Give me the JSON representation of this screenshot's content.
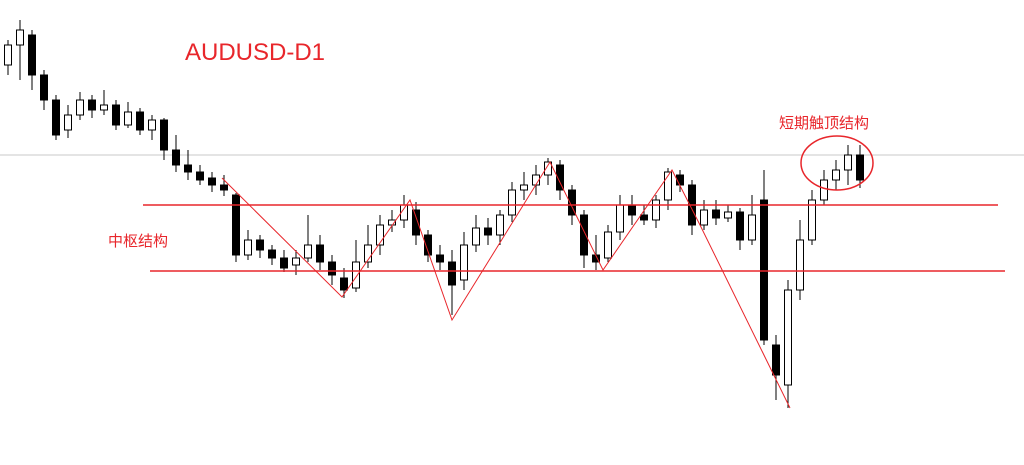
{
  "chart_data": {
    "type": "candlestick",
    "title": "AUDUSD-D1",
    "annotations": [
      "中枢结构",
      "短期触顶结构"
    ],
    "ylim": [
      0,
      465
    ],
    "open": [
      400,
      420,
      430,
      390,
      365,
      335,
      350,
      365,
      355,
      360,
      340,
      353,
      335,
      345,
      315,
      300,
      293,
      287,
      280,
      270,
      210,
      225,
      215,
      207,
      200,
      207,
      220,
      203,
      187,
      177,
      203,
      220,
      240,
      245,
      255,
      230,
      210,
      203,
      185,
      220,
      237,
      230,
      250,
      275,
      280,
      290,
      300,
      275,
      250,
      210,
      207,
      233,
      260,
      250,
      245,
      265,
      290,
      280,
      240,
      255,
      247,
      253,
      225,
      265,
      120,
      80,
      175,
      225,
      265,
      285,
      295,
      310
    ],
    "high": [
      425,
      445,
      435,
      395,
      370,
      360,
      373,
      370,
      375,
      365,
      363,
      357,
      350,
      347,
      330,
      315,
      300,
      293,
      290,
      272,
      235,
      230,
      220,
      215,
      215,
      250,
      230,
      210,
      197,
      225,
      240,
      250,
      255,
      270,
      263,
      235,
      220,
      215,
      233,
      250,
      247,
      255,
      283,
      293,
      300,
      307,
      305,
      280,
      255,
      230,
      240,
      270,
      270,
      260,
      270,
      297,
      295,
      285,
      265,
      265,
      260,
      257,
      270,
      295,
      130,
      185,
      245,
      275,
      295,
      305,
      320,
      320
    ],
    "low": [
      390,
      385,
      375,
      355,
      325,
      327,
      345,
      347,
      350,
      335,
      337,
      330,
      325,
      305,
      293,
      285,
      280,
      273,
      269,
      203,
      205,
      207,
      200,
      193,
      190,
      203,
      195,
      180,
      167,
      173,
      197,
      210,
      233,
      237,
      220,
      203,
      195,
      150,
      175,
      213,
      220,
      220,
      243,
      265,
      270,
      280,
      265,
      240,
      197,
      195,
      203,
      225,
      240,
      240,
      237,
      255,
      273,
      230,
      235,
      240,
      243,
      215,
      220,
      120,
      65,
      57,
      165,
      220,
      260,
      275,
      280,
      277
    ],
    "close": [
      420,
      435,
      390,
      365,
      330,
      350,
      365,
      355,
      360,
      340,
      353,
      335,
      345,
      315,
      300,
      293,
      285,
      280,
      275,
      210,
      225,
      215,
      207,
      197,
      207,
      220,
      203,
      190,
      175,
      203,
      220,
      240,
      245,
      260,
      230,
      210,
      203,
      180,
      220,
      237,
      230,
      250,
      275,
      280,
      290,
      303,
      275,
      250,
      210,
      203,
      233,
      260,
      250,
      245,
      265,
      293,
      280,
      240,
      255,
      247,
      253,
      225,
      250,
      125,
      90,
      175,
      225,
      265,
      285,
      295,
      310,
      285
    ]
  }
}
